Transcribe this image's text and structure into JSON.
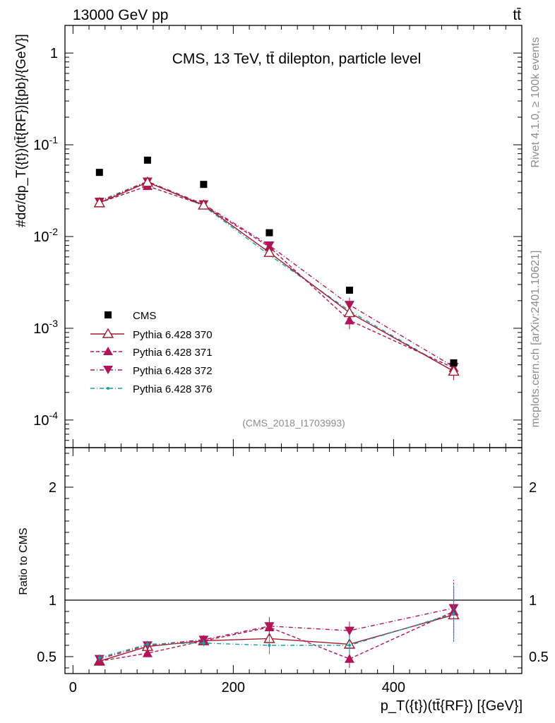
{
  "header": {
    "left_label": "13000 GeV pp",
    "right_label": "tt̄"
  },
  "side_labels": {
    "rivet": "Rivet 4.1.0, ≥ 100k events",
    "source": "mcplots.cern.ch [arXiv:2401.10621]"
  },
  "chart_data": {
    "type": "scatter",
    "title": "CMS, 13 TeV, tt̄ dilepton, particle level",
    "analysis_id": "(CMS_2018_I1703993)",
    "x": [
      33,
      93,
      163,
      245,
      345,
      475
    ],
    "xlim": [
      -10,
      560
    ],
    "xticks": [
      0,
      200,
      400
    ],
    "xlabel": "p_T({t})(tt̄{RF}) [{GeV}]",
    "main": {
      "ylabel": "#dσ/dp_T({t})(tt̄{RF})[{pb}/{GeV}]",
      "yscale": "log",
      "ylim": [
        5e-05,
        2
      ],
      "ytick_labels": [
        "10^-4",
        "10^-3",
        "10^-2",
        "10^-1",
        "1"
      ],
      "series": [
        {
          "name": "CMS",
          "color": "#000000",
          "marker": "square",
          "line": "none",
          "values": [
            0.05,
            0.068,
            0.037,
            0.011,
            0.0026,
            0.00042
          ]
        },
        {
          "name": "Pythia 6.428 370",
          "color": "#a11b2a",
          "marker": "open-triangle-up",
          "line": "solid",
          "values": [
            0.0233,
            0.039,
            0.022,
            0.0067,
            0.00148,
            0.00034
          ]
        },
        {
          "name": "Pythia 6.428 371",
          "color": "#b0155a",
          "marker": "triangle-up",
          "line": "dashed",
          "values": [
            0.0234,
            0.0355,
            0.022,
            0.0077,
            0.00122,
            0.00037
          ]
        },
        {
          "name": "Pythia 6.428 372",
          "color": "#b0155a",
          "marker": "triangle-down",
          "line": "dashdot",
          "values": [
            0.024,
            0.0398,
            0.0225,
            0.008,
            0.0018,
            0.00038
          ]
        },
        {
          "name": "Pythia 6.428 376",
          "color": "#17a0a0",
          "marker": "dot",
          "line": "dashdot",
          "values": [
            0.0245,
            0.04,
            0.0215,
            0.0063,
            0.00155,
            0.00034
          ]
        }
      ]
    },
    "ratio": {
      "ylabel": "Ratio to CMS",
      "ylim": [
        0.35,
        2.35
      ],
      "yticks": [
        0.5,
        1,
        2
      ],
      "ytick_labels": [
        "0.5",
        "1",
        "2"
      ],
      "series": [
        {
          "name": "Pythia 6.428 370",
          "values": [
            0.46,
            0.59,
            0.64,
            0.66,
            0.61,
            0.87
          ]
        },
        {
          "name": "Pythia 6.428 371",
          "values": [
            0.46,
            0.53,
            0.64,
            0.76,
            0.48,
            0.9
          ]
        },
        {
          "name": "Pythia 6.428 372",
          "values": [
            0.48,
            0.6,
            0.65,
            0.77,
            0.73,
            0.93
          ]
        },
        {
          "name": "Pythia 6.428 376",
          "values": [
            0.49,
            0.61,
            0.62,
            0.6,
            0.6,
            0.88
          ]
        }
      ]
    }
  }
}
